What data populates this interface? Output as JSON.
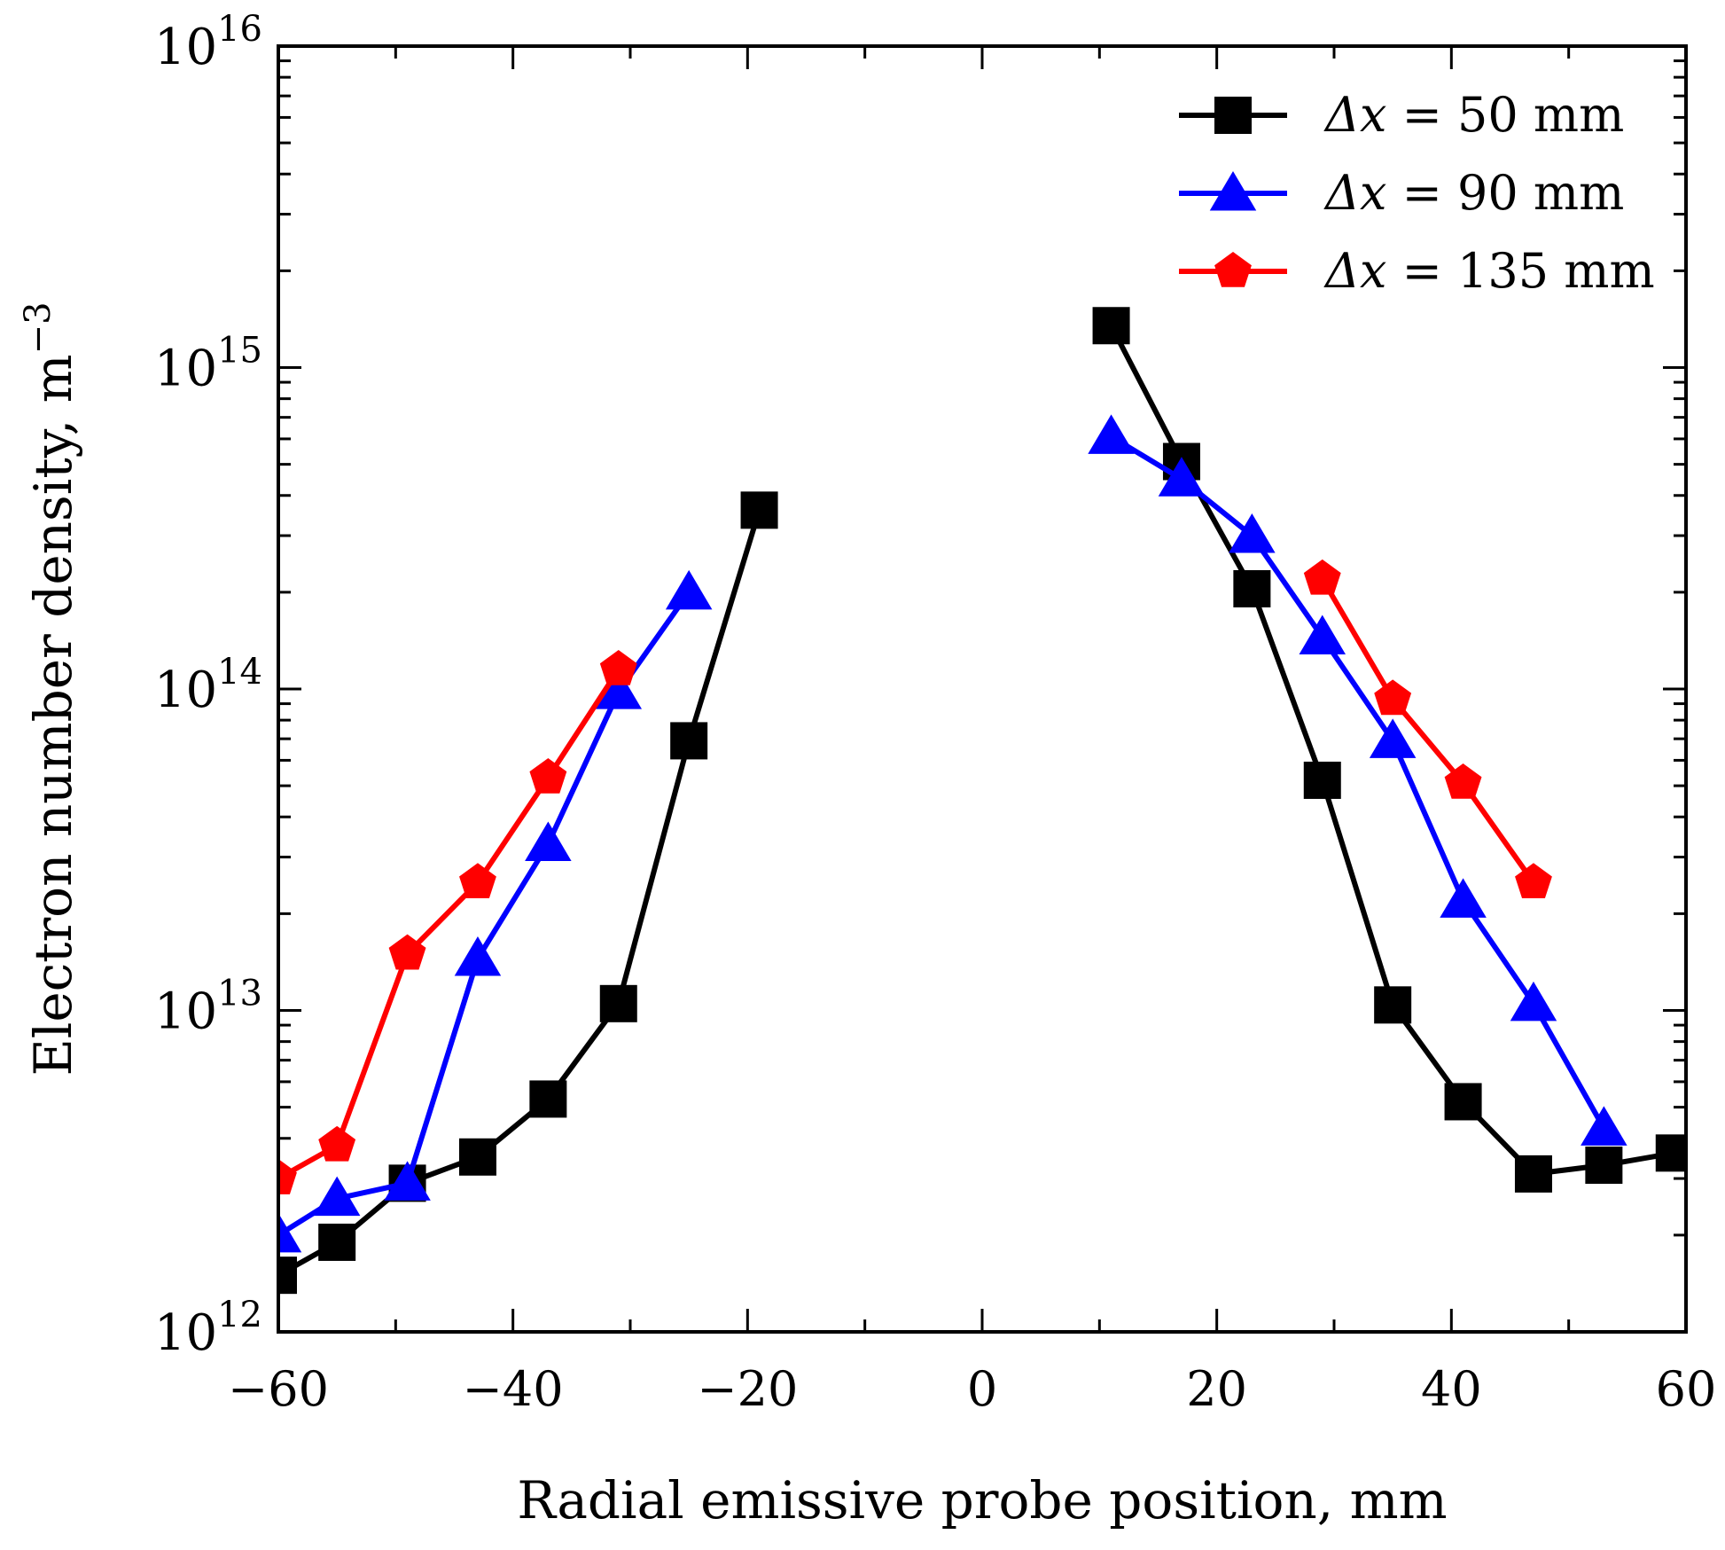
{
  "chart_data": {
    "type": "line",
    "xlabel": "Radial emissive probe position, mm",
    "ylabel": "Electron number density, m",
    "ylabel_exponent": "−3",
    "xlim": [
      -60,
      60
    ],
    "ylim": [
      1000000000000.0,
      1e+16
    ],
    "yscale": "log",
    "xticks": [
      {
        "value": -60,
        "label": "−60"
      },
      {
        "value": -40,
        "label": "−40"
      },
      {
        "value": -20,
        "label": "−20"
      },
      {
        "value": 0,
        "label": "0"
      },
      {
        "value": 20,
        "label": "20"
      },
      {
        "value": 40,
        "label": "40"
      },
      {
        "value": 60,
        "label": "60"
      }
    ],
    "yticks": [
      {
        "value": 1000000000000.0,
        "base": "10",
        "exp": "12"
      },
      {
        "value": 10000000000000.0,
        "base": "10",
        "exp": "13"
      },
      {
        "value": 100000000000000.0,
        "base": "10",
        "exp": "14"
      },
      {
        "value": 1000000000000000.0,
        "base": "10",
        "exp": "15"
      },
      {
        "value": 1e+16,
        "base": "10",
        "exp": "16"
      }
    ],
    "grid": false,
    "legend_position": "top-right",
    "series": [
      {
        "name": "Δx = 50 mm",
        "label_var": "Δx",
        "label_rest": " = 50 mm",
        "color": "#000000",
        "marker": "square",
        "segments": [
          [
            [
              -60,
              1500000000000.0
            ],
            [
              -55,
              1900000000000.0
            ],
            [
              -49,
              2900000000000.0
            ],
            [
              -43,
              3500000000000.0
            ],
            [
              -37,
              5300000000000.0
            ],
            [
              -31,
              10500000000000.0
            ],
            [
              -25,
              69000000000000.0
            ],
            [
              -19,
              360000000000000.0
            ]
          ],
          [
            [
              11,
              1350000000000000.0
            ],
            [
              17,
              510000000000000.0
            ],
            [
              23,
              205000000000000.0
            ],
            [
              29,
              52000000000000.0
            ],
            [
              35,
              10400000000000.0
            ],
            [
              41,
              5200000000000.0
            ],
            [
              47,
              3100000000000.0
            ],
            [
              53,
              3300000000000.0
            ],
            [
              59,
              3600000000000.0
            ]
          ]
        ]
      },
      {
        "name": "Δx = 90 mm",
        "label_var": "Δx",
        "label_rest": " = 90 mm",
        "color": "#0000ff",
        "marker": "triangle",
        "segments": [
          [
            [
              -60,
              2000000000000.0
            ],
            [
              -55,
              2600000000000.0
            ],
            [
              -49,
              2900000000000.0
            ],
            [
              -43,
              14500000000000.0
            ],
            [
              -37,
              33000000000000.0
            ],
            [
              -31,
              98000000000000.0
            ],
            [
              -25,
              200000000000000.0
            ]
          ],
          [
            [
              11,
              610000000000000.0
            ],
            [
              17,
              450000000000000.0
            ],
            [
              23,
              300000000000000.0
            ],
            [
              29,
              145000000000000.0
            ],
            [
              35,
              69000000000000.0
            ],
            [
              41,
              22000000000000.0
            ],
            [
              47,
              10500000000000.0
            ],
            [
              53,
              4300000000000.0
            ]
          ]
        ]
      },
      {
        "name": "Δx = 135 mm",
        "label_var": "Δx",
        "label_rest": " = 135 mm",
        "color": "#ff0000",
        "marker": "pentagon",
        "segments": [
          [
            [
              -60,
              3000000000000.0
            ],
            [
              -55,
              3800000000000.0
            ],
            [
              -49,
              15000000000000.0
            ],
            [
              -43,
              25000000000000.0
            ],
            [
              -37,
              53000000000000.0
            ],
            [
              -31,
              115000000000000.0
            ]
          ],
          [
            [
              29,
              220000000000000.0
            ],
            [
              35,
              93000000000000.0
            ],
            [
              41,
              51000000000000.0
            ],
            [
              47,
              25000000000000.0
            ]
          ]
        ]
      }
    ]
  }
}
